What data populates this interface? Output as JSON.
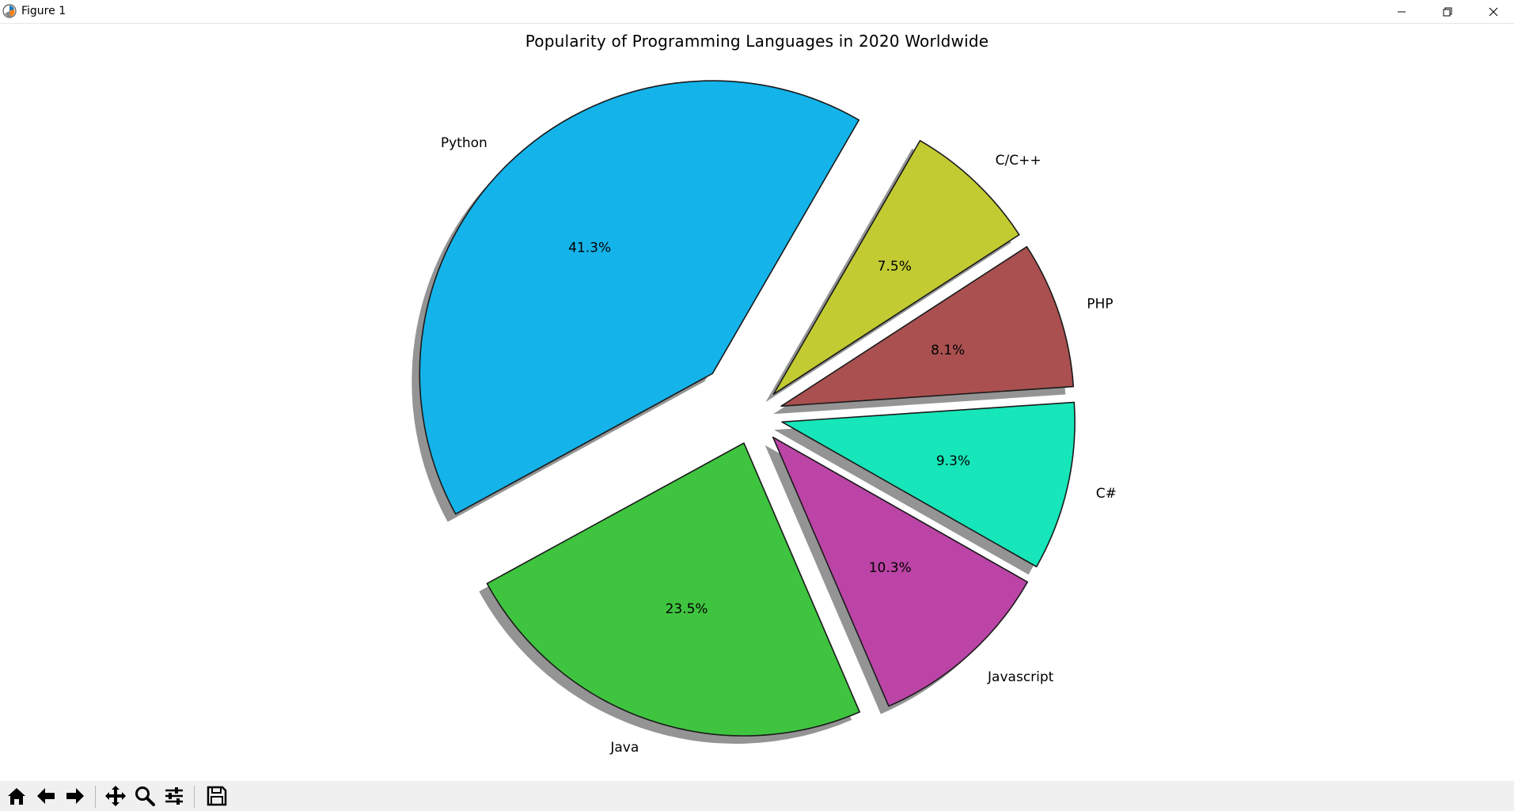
{
  "window": {
    "title": "Figure 1"
  },
  "chart_data": {
    "type": "pie",
    "title": "Popularity of Programming Languages in 2020 Worldwide",
    "labels": [
      "Python",
      "Java",
      "Javascript",
      "C#",
      "PHP",
      "C/C++"
    ],
    "values": [
      41.3,
      23.5,
      10.3,
      9.3,
      8.1,
      7.5
    ],
    "pct_labels": [
      "41.3%",
      "23.5%",
      "10.3%",
      "9.3%",
      "8.1%",
      "7.5%"
    ],
    "explode": [
      0.2,
      0.1,
      0.1,
      0.1,
      0.1,
      0.1
    ],
    "start_angle_deg": 60,
    "shadow": true,
    "colors": [
      "#14b3ea",
      "#3fc43f",
      "#bb44a6",
      "#16e6b9",
      "#aa5050",
      "#c2cb32"
    ],
    "edge_color": "#1a1a1a"
  },
  "toolbar": {
    "items": [
      "home-icon",
      "back-icon",
      "forward-icon",
      "pan-icon",
      "zoom-icon",
      "configure-subplots-icon",
      "save-icon"
    ]
  }
}
